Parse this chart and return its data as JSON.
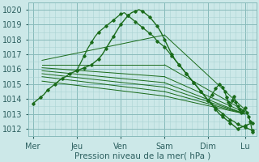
{
  "bg_color": "#cce8e8",
  "grid_major_color": "#88bbbb",
  "grid_minor_color": "#aad4d4",
  "line_color": "#1a6b1a",
  "xlabel": "Pression niveau de la mer( hPa )",
  "ylim": [
    1011.5,
    1020.5
  ],
  "yticks": [
    1012,
    1013,
    1014,
    1015,
    1016,
    1017,
    1018,
    1019,
    1020
  ],
  "xtick_labels": [
    "Mer",
    "Jeu",
    "Ven",
    "Sam",
    "Dim",
    "Lu"
  ],
  "xtick_positions": [
    0,
    48,
    96,
    144,
    192,
    232
  ],
  "xlim": [
    -5,
    245
  ],
  "main_line": {
    "x": [
      0,
      4,
      8,
      12,
      16,
      20,
      24,
      28,
      32,
      36,
      40,
      44,
      48,
      52,
      56,
      60,
      64,
      68,
      72,
      76,
      80,
      84,
      88,
      92,
      96,
      100,
      104,
      108,
      112,
      116,
      120,
      124,
      128,
      132,
      136,
      140,
      144,
      148,
      152,
      156,
      160,
      164,
      168,
      172,
      176,
      180,
      184,
      188,
      192,
      196,
      200,
      204,
      208,
      212,
      216,
      220,
      224,
      228,
      232,
      236,
      240
    ],
    "y": [
      1013.7,
      1013.9,
      1014.1,
      1014.3,
      1014.6,
      1014.8,
      1015.0,
      1015.2,
      1015.4,
      1015.5,
      1015.7,
      1015.8,
      1015.9,
      1016.0,
      1016.1,
      1016.2,
      1016.3,
      1016.5,
      1016.7,
      1017.0,
      1017.4,
      1017.8,
      1018.2,
      1018.6,
      1019.0,
      1019.3,
      1019.6,
      1019.8,
      1019.9,
      1020.0,
      1019.9,
      1019.7,
      1019.5,
      1019.2,
      1018.9,
      1018.5,
      1018.0,
      1017.5,
      1017.0,
      1016.6,
      1016.3,
      1016.0,
      1015.7,
      1015.4,
      1015.1,
      1014.8,
      1014.5,
      1014.2,
      1013.9,
      1013.6,
      1013.3,
      1013.0,
      1012.8,
      1012.6,
      1012.4,
      1012.2,
      1012.0,
      1012.1,
      1012.2,
      1012.3,
      1012.4
    ]
  },
  "jagged_line": {
    "x": [
      48,
      52,
      56,
      60,
      64,
      68,
      72,
      76,
      80,
      84,
      88,
      92,
      96,
      100,
      104,
      108,
      112,
      116,
      120,
      124,
      128,
      132,
      136,
      140,
      144,
      148,
      152,
      156,
      160,
      164,
      168,
      172,
      176,
      180,
      184,
      188,
      192,
      196,
      200,
      204,
      208,
      212,
      216,
      220,
      224,
      228,
      232,
      236,
      240
    ],
    "y": [
      1015.9,
      1016.4,
      1016.9,
      1017.4,
      1017.8,
      1018.2,
      1018.5,
      1018.7,
      1018.9,
      1019.1,
      1019.3,
      1019.5,
      1019.7,
      1019.8,
      1019.6,
      1019.4,
      1019.2,
      1019.0,
      1018.8,
      1018.6,
      1018.4,
      1018.2,
      1017.9,
      1017.7,
      1017.5,
      1017.2,
      1016.9,
      1016.6,
      1016.3,
      1016.0,
      1015.7,
      1015.4,
      1015.1,
      1014.8,
      1014.5,
      1014.2,
      1013.9,
      1013.7,
      1013.4,
      1013.2,
      1013.0,
      1012.8,
      1012.6,
      1012.5,
      1012.3,
      1012.2,
      1012.1,
      1012.0,
      1011.9
    ]
  },
  "fan_lines": [
    {
      "x": [
        10,
        144
      ],
      "y": [
        1016.6,
        1018.3
      ]
    },
    {
      "x": [
        10,
        144
      ],
      "y": [
        1016.3,
        1016.3
      ]
    },
    {
      "x": [
        10,
        144
      ],
      "y": [
        1016.1,
        1015.5
      ]
    },
    {
      "x": [
        10,
        144
      ],
      "y": [
        1015.9,
        1015.1
      ]
    },
    {
      "x": [
        10,
        144
      ],
      "y": [
        1015.7,
        1014.8
      ]
    },
    {
      "x": [
        10,
        144
      ],
      "y": [
        1015.5,
        1014.5
      ]
    },
    {
      "x": [
        10,
        144
      ],
      "y": [
        1015.2,
        1014.2
      ]
    }
  ],
  "fan_ext_lines": [
    {
      "x": [
        144,
        232
      ],
      "y": [
        1018.3,
        1013.3
      ]
    },
    {
      "x": [
        144,
        232
      ],
      "y": [
        1016.3,
        1013.2
      ]
    },
    {
      "x": [
        144,
        232
      ],
      "y": [
        1015.5,
        1013.1
      ]
    },
    {
      "x": [
        144,
        232
      ],
      "y": [
        1015.1,
        1013.0
      ]
    },
    {
      "x": [
        144,
        232
      ],
      "y": [
        1014.8,
        1013.0
      ]
    },
    {
      "x": [
        144,
        232
      ],
      "y": [
        1014.5,
        1013.0
      ]
    },
    {
      "x": [
        144,
        232
      ],
      "y": [
        1014.2,
        1013.0
      ]
    }
  ],
  "dim_wiggles": {
    "x": [
      192,
      196,
      200,
      204,
      208,
      210,
      212,
      214,
      216,
      218,
      220,
      222,
      224,
      226,
      228,
      230,
      232,
      234,
      236,
      238,
      240
    ],
    "y": [
      1013.9,
      1014.3,
      1014.7,
      1015.0,
      1014.8,
      1014.5,
      1014.1,
      1013.8,
      1013.6,
      1013.9,
      1014.2,
      1013.8,
      1013.5,
      1013.3,
      1013.1,
      1013.2,
      1013.4,
      1013.1,
      1012.8,
      1012.5,
      1011.8
    ]
  }
}
